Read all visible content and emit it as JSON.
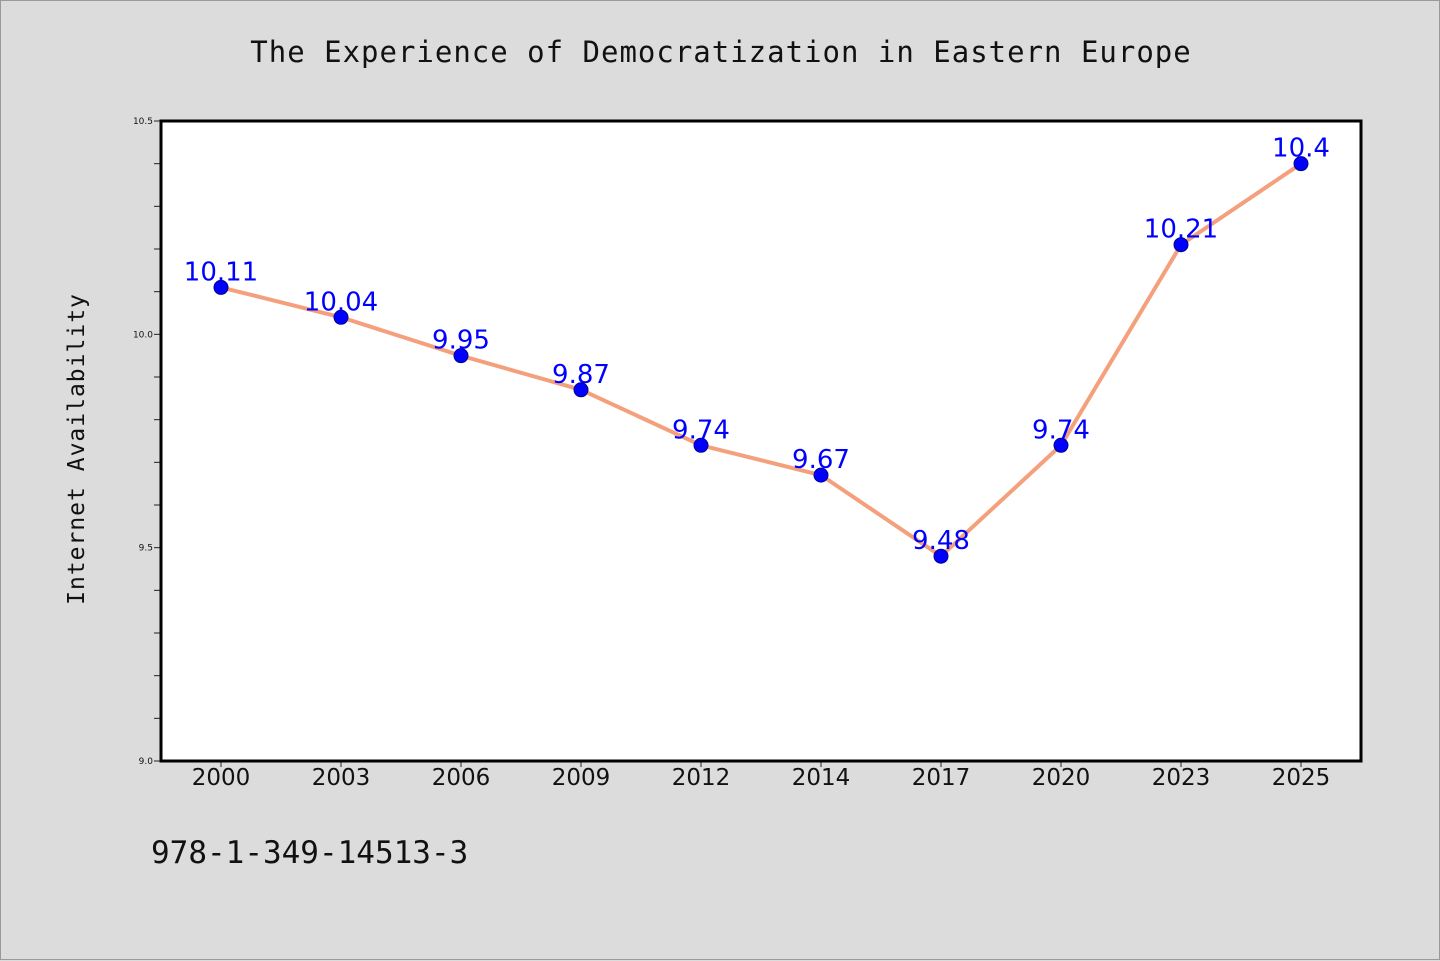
{
  "footer": {
    "isbn": "978-1-349-14513-3"
  },
  "colors": {
    "line": "#f4a07c",
    "marker": "#0000ff",
    "data_label": "#0000ff",
    "plot_background": "#ffffff",
    "page_background": "#dcdcdc"
  },
  "chart_data": {
    "type": "line",
    "title": "The Experience of Democratization in Eastern Europe",
    "xlabel": "",
    "ylabel": "Internet Availability",
    "categories": [
      "2000",
      "2003",
      "2006",
      "2009",
      "2012",
      "2014",
      "2017",
      "2020",
      "2023",
      "2025"
    ],
    "series": [
      {
        "values": [
          10.11,
          10.04,
          9.95,
          9.87,
          9.74,
          9.67,
          9.48,
          9.74,
          10.21,
          10.4
        ],
        "labels": [
          "10.11",
          "10.04",
          "9.95",
          "9.87",
          "9.74",
          "9.67",
          "9.48",
          "9.74",
          "10.21",
          "10.4"
        ]
      }
    ],
    "ylim": [
      9.0,
      10.5
    ],
    "yticks": [
      "9.0",
      "9.5",
      "10.0",
      "10.5"
    ],
    "grid": false,
    "legend": "none"
  }
}
